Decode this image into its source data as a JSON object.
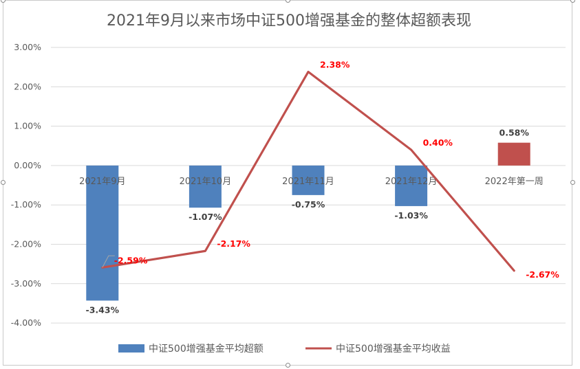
{
  "chart_data": {
    "type": "bar",
    "title": "2021年9月以来市场中证500增强基金的整体超额表现",
    "categories": [
      "2021年9月",
      "2021年10月",
      "2021年11月",
      "2021年12月",
      "2022年第一周"
    ],
    "y_ticks": [
      "3.00%",
      "2.00%",
      "1.00%",
      "0.00%",
      "-1.00%",
      "-2.00%",
      "-3.00%",
      "-4.00%"
    ],
    "ylim": [
      -4,
      3
    ],
    "unit": "%",
    "grid": true,
    "legend_position": "bottom",
    "series": [
      {
        "name": "中证500增强基金平均超额",
        "type": "bar",
        "values": [
          -3.43,
          -1.07,
          -0.75,
          -1.03,
          0.58
        ],
        "labels": [
          "-3.43%",
          "-1.07%",
          "-0.75%",
          "-1.03%",
          "0.58%"
        ],
        "color": "#4f81bd",
        "highlight_color": "#c0504d"
      },
      {
        "name": "中证500增强基金平均收益",
        "type": "line",
        "values": [
          -2.59,
          -2.17,
          2.38,
          0.4,
          -2.67
        ],
        "labels": [
          "-2.59%",
          "-2.17%",
          "2.38%",
          "0.40%",
          "-2.67%"
        ],
        "color": "#c0504d",
        "label_color": "#ff0000"
      }
    ]
  }
}
